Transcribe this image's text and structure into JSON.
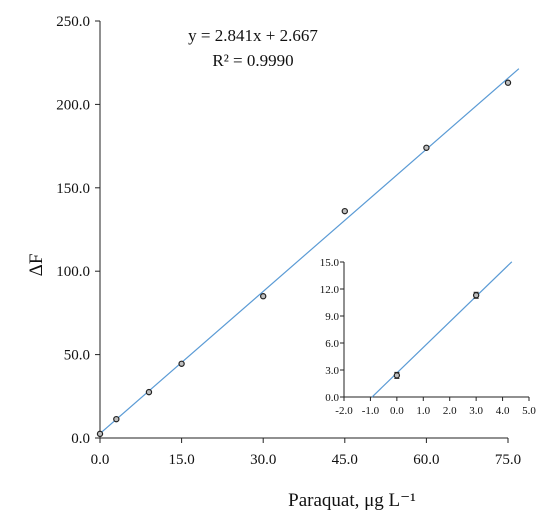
{
  "colors": {
    "fit_line": "#5b9bd5",
    "axis": "#222222",
    "marker": "#222222"
  },
  "annotations": {
    "equation": "y = 2.841x + 2.667",
    "r_squared": "R² = 0.9990"
  },
  "chart_data": [
    {
      "type": "scatter",
      "title": "",
      "xlabel": "Paraquat, μg L⁻¹",
      "ylabel": "ΔF",
      "xlim": [
        0,
        75
      ],
      "ylim": [
        0,
        250
      ],
      "x_ticks": [
        "0.0",
        "15.0",
        "30.0",
        "45.0",
        "60.0",
        "75.0"
      ],
      "y_ticks": [
        "0.0",
        "50.0",
        "100.0",
        "150.0",
        "200.0",
        "250.0"
      ],
      "grid": false,
      "series": [
        {
          "points": [
            {
              "x": 0,
              "y": 2.5
            },
            {
              "x": 3,
              "y": 11.3
            },
            {
              "x": 9,
              "y": 27.5
            },
            {
              "x": 15,
              "y": 44.5
            },
            {
              "x": 30,
              "y": 85
            },
            {
              "x": 45,
              "y": 136
            },
            {
              "x": 60,
              "y": 174
            },
            {
              "x": 75,
              "y": 213
            }
          ]
        }
      ],
      "fit": {
        "slope": 2.841,
        "intercept": 2.667
      }
    },
    {
      "type": "scatter",
      "title": "",
      "xlabel": "",
      "ylabel": "",
      "xlim": [
        -2,
        5
      ],
      "ylim": [
        0,
        15
      ],
      "x_ticks": [
        "-2.0",
        "-1.0",
        "0.0",
        "1.0",
        "2.0",
        "3.0",
        "4.0",
        "5.0"
      ],
      "y_ticks": [
        "0.0",
        "3.0",
        "6.0",
        "9.0",
        "12.0",
        "15.0"
      ],
      "grid": false,
      "series": [
        {
          "points": [
            {
              "x": 0,
              "y": 2.4
            },
            {
              "x": 3,
              "y": 11.3
            }
          ]
        }
      ],
      "fit": {
        "slope": 2.841,
        "intercept": 2.667
      }
    }
  ]
}
